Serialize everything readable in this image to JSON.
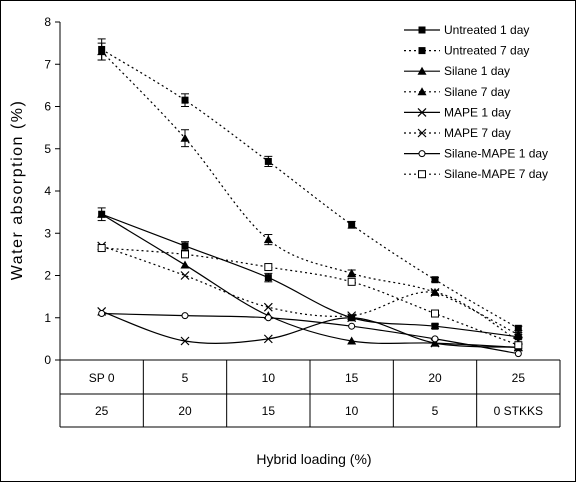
{
  "chart_data": {
    "type": "line",
    "ylabel": "Water absorption (%)",
    "xlabel": "Hybrid loading (%)",
    "ylim": [
      0,
      8
    ],
    "yticks": [
      "0",
      "1",
      "2",
      "3",
      "4",
      "5",
      "6",
      "7",
      "8"
    ],
    "grid": false,
    "legend_position": "top-right",
    "x_row1": [
      "SP 0",
      "5",
      "10",
      "15",
      "20",
      "25"
    ],
    "x_row2": [
      "25",
      "20",
      "15",
      "10",
      "5",
      "0 STKKS"
    ],
    "series": [
      {
        "name": "Untreated 1 day",
        "marker": "square",
        "dash": "solid",
        "values": [
          3.45,
          2.7,
          1.95,
          1.0,
          0.8,
          0.55
        ],
        "errors": [
          0.15,
          0.1,
          0.1,
          0.05,
          0.05,
          0.05
        ]
      },
      {
        "name": "Untreated 7 day",
        "marker": "square",
        "dash": "dotted",
        "values": [
          7.35,
          6.15,
          4.7,
          3.2,
          1.9,
          0.75
        ],
        "errors": [
          0.25,
          0.15,
          0.12,
          0.08,
          0.05,
          0.05
        ]
      },
      {
        "name": "Silane 1 day",
        "marker": "triangle",
        "dash": "solid",
        "values": [
          3.45,
          2.25,
          1.05,
          0.45,
          0.4,
          0.3
        ]
      },
      {
        "name": "Silane 7 day",
        "marker": "triangle",
        "dash": "dotted",
        "values": [
          7.3,
          5.25,
          2.85,
          2.05,
          1.6,
          0.6
        ],
        "errors": [
          0.2,
          0.2,
          0.12,
          0.08,
          0.05,
          0.05
        ]
      },
      {
        "name": "MAPE 1  day",
        "marker": "x",
        "dash": "solid",
        "values": [
          1.15,
          0.45,
          0.5,
          1.0,
          0.4,
          0.3
        ]
      },
      {
        "name": "MAPE 7 day",
        "marker": "x",
        "dash": "dotted",
        "values": [
          2.7,
          2.0,
          1.25,
          1.05,
          1.6,
          0.45
        ]
      },
      {
        "name": "Silane-MAPE  1  day",
        "marker": "circle",
        "dash": "solid",
        "values": [
          1.1,
          1.05,
          1.0,
          0.8,
          0.5,
          0.15
        ]
      },
      {
        "name": "Silane-MAPE 7 day",
        "marker": "open-square",
        "dash": "dotted",
        "values": [
          2.65,
          2.5,
          2.2,
          1.85,
          1.1,
          0.35
        ]
      }
    ]
  }
}
